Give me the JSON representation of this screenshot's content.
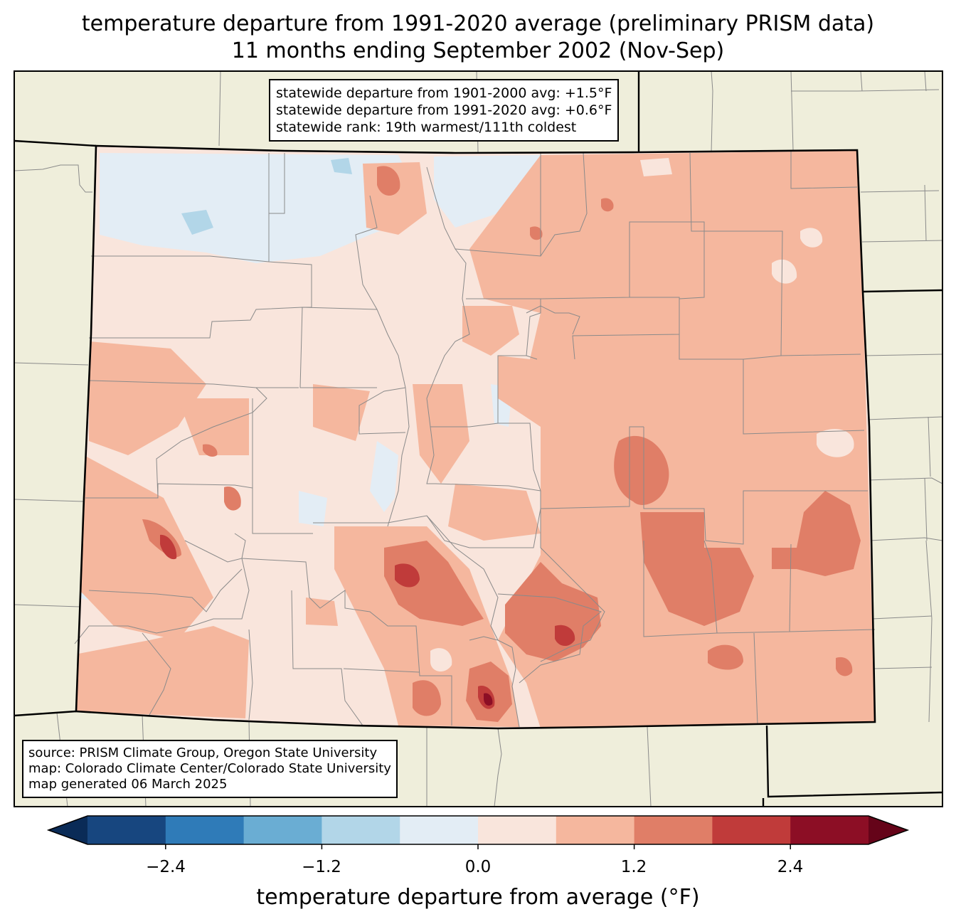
{
  "title": {
    "line1": "temperature departure from 1991-2020 average (preliminary PRISM data)",
    "line2": "11 months ending September 2002 (Nov-Sep)"
  },
  "stats": {
    "line1": "statewide departure from 1901-2000 avg: +1.5°F",
    "line2": "statewide departure from 1991-2020 avg: +0.6°F",
    "line3": "statewide rank: 19th warmest/111th coldest"
  },
  "credits": {
    "line1": "source: PRISM Climate Group, Oregon State University",
    "line2": "map: Colorado Climate Center/Colorado State University",
    "line3": "map generated 06 March 2025"
  },
  "colorbar": {
    "label": "temperature departure from average (°F)",
    "ticks": [
      "−2.4",
      "−1.2",
      "0.0",
      "1.2",
      "2.4"
    ],
    "bins": [
      -3.0,
      -2.4,
      -1.8,
      -1.2,
      -0.6,
      0.0,
      0.6,
      1.2,
      1.8,
      2.4,
      3.0
    ],
    "colors": [
      "#17467f",
      "#2f7bb8",
      "#6aadd3",
      "#b2d6e8",
      "#e3edf5",
      "#f9e5dc",
      "#f5b79e",
      "#e07e67",
      "#c03b3a",
      "#8c0e25"
    ],
    "under_color": "#0a2b57",
    "over_color": "#650419"
  },
  "colors": {
    "land_outside": "#efeedb",
    "state_border": "#000000",
    "county_lines": "#8a8a8a"
  }
}
